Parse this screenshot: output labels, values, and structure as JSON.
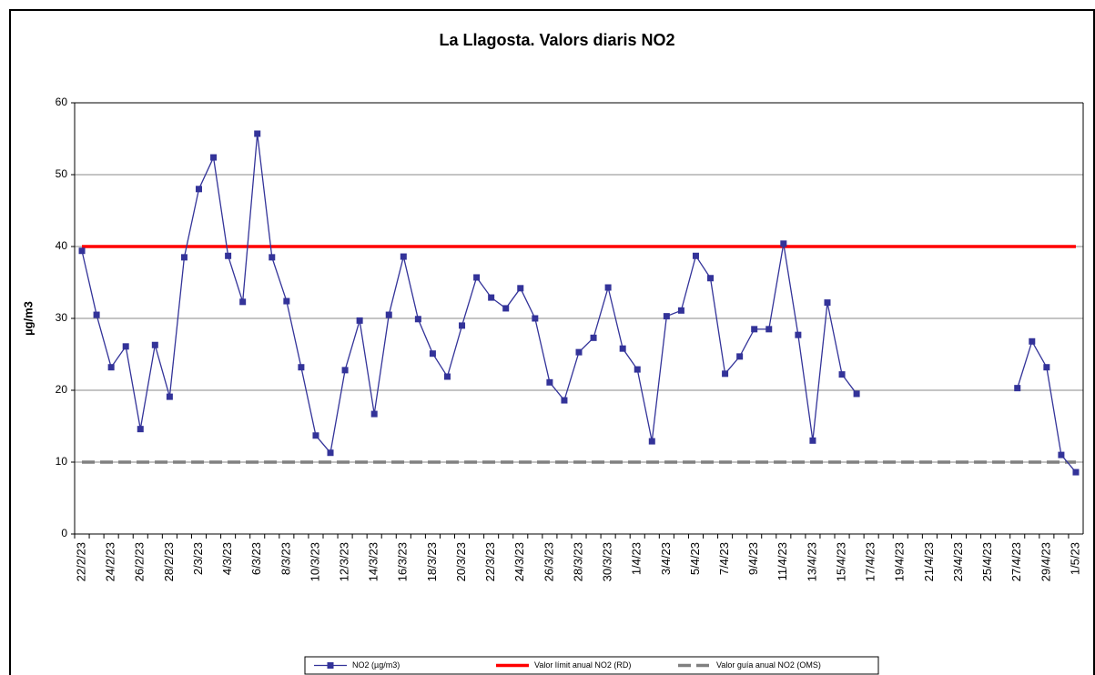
{
  "chart_data": {
    "type": "line",
    "title": "La Llagosta. Valors diaris NO2",
    "y_label": "µg/m3",
    "categories": [
      "22/2/23",
      null,
      "24/2/23",
      null,
      "26/2/23",
      null,
      "28/2/23",
      null,
      "2/3/23",
      null,
      "4/3/23",
      null,
      "6/3/23",
      null,
      "8/3/23",
      null,
      "10/3/23",
      null,
      "12/3/23",
      null,
      "14/3/23",
      null,
      "16/3/23",
      null,
      "18/3/23",
      null,
      "20/3/23",
      null,
      "22/3/23",
      null,
      "24/3/23",
      null,
      "26/3/23",
      null,
      "28/3/23",
      null,
      "30/3/23",
      null,
      "1/4/23",
      null,
      "3/4/23",
      null,
      "5/4/23",
      null,
      "7/4/23",
      null,
      "9/4/23",
      null,
      "11/4/23",
      null,
      "13/4/23",
      null,
      "15/4/23",
      null,
      "17/4/23",
      null,
      "19/4/23",
      null,
      "21/4/23",
      null,
      "23/4/23",
      null,
      "25/4/23",
      null,
      "27/4/23",
      null,
      "29/4/23",
      null,
      "1/5/23"
    ],
    "series": [
      {
        "name": "NO2 (µg/m3)",
        "color": "#333399",
        "marker": true,
        "dash": false,
        "values": [
          39.4,
          30.5,
          23.2,
          26.1,
          14.6,
          26.3,
          19.1,
          38.5,
          48.0,
          52.4,
          38.7,
          32.3,
          55.7,
          38.5,
          32.4,
          23.2,
          13.7,
          11.3,
          22.8,
          29.7,
          16.7,
          30.5,
          38.6,
          29.9,
          25.1,
          21.9,
          29.0,
          35.7,
          32.9,
          31.4,
          34.2,
          30.0,
          21.1,
          18.6,
          25.3,
          27.3,
          34.3,
          25.8,
          22.9,
          12.9,
          30.3,
          31.1,
          38.7,
          35.6,
          22.3,
          24.7,
          28.5,
          28.5,
          40.4,
          27.7,
          13.0,
          32.2,
          22.2,
          19.5,
          null,
          null,
          null,
          null,
          null,
          null,
          null,
          null,
          null,
          null,
          20.3,
          26.8,
          23.2,
          11.0,
          8.6
        ]
      },
      {
        "name": "Valor límit anual NO2 (RD)",
        "color": "#ff0000",
        "marker": false,
        "dash": false,
        "values": [
          40,
          40,
          40,
          40,
          40,
          40,
          40,
          40,
          40,
          40,
          40,
          40,
          40,
          40,
          40,
          40,
          40,
          40,
          40,
          40,
          40,
          40,
          40,
          40,
          40,
          40,
          40,
          40,
          40,
          40,
          40,
          40,
          40,
          40,
          40,
          40,
          40,
          40,
          40,
          40,
          40,
          40,
          40,
          40,
          40,
          40,
          40,
          40,
          40,
          40,
          40,
          40,
          40,
          40,
          40,
          40,
          40,
          40,
          40,
          40,
          40,
          40,
          40,
          40,
          40,
          40,
          40,
          40,
          40
        ]
      },
      {
        "name": "Valor guía anual NO2 (OMS)",
        "color": "#808080",
        "marker": false,
        "dash": true,
        "values": [
          10,
          10,
          10,
          10,
          10,
          10,
          10,
          10,
          10,
          10,
          10,
          10,
          10,
          10,
          10,
          10,
          10,
          10,
          10,
          10,
          10,
          10,
          10,
          10,
          10,
          10,
          10,
          10,
          10,
          10,
          10,
          10,
          10,
          10,
          10,
          10,
          10,
          10,
          10,
          10,
          10,
          10,
          10,
          10,
          10,
          10,
          10,
          10,
          10,
          10,
          10,
          10,
          10,
          10,
          10,
          10,
          10,
          10,
          10,
          10,
          10,
          10,
          10,
          10,
          10,
          10,
          10,
          10,
          10
        ]
      }
    ],
    "ylim": [
      0,
      60
    ],
    "yticks": [
      0,
      10,
      20,
      30,
      40,
      50,
      60
    ],
    "grid": true,
    "legend": "bottom"
  }
}
